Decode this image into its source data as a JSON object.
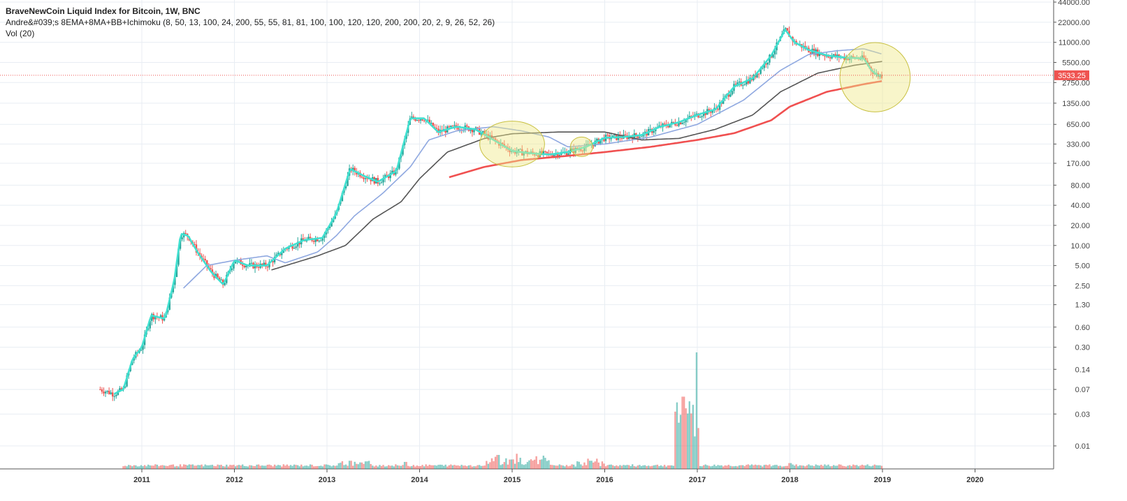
{
  "header": {
    "title": "BraveNewCoin Liquid Index for Bitcoin, 1W, BNC",
    "indicator": "Andre&#039;s 8EMA+8MA+BB+Ichimoku (8, 50, 13, 100, 24, 200, 55, 55, 81, 81, 100, 100, 120, 120, 200, 200, 20, 2, 9, 26, 52, 26)",
    "volume": "Vol (20)"
  },
  "colors": {
    "up": "#26a69a",
    "down": "#ef5350",
    "ema8": "#40e0d0",
    "ma50": "#8fa8e0",
    "ma100": "#555555",
    "ma200": "#f05050",
    "grid": "#e8edf3",
    "highlight": "#f0e88a",
    "price_label": "#ef5350"
  },
  "chart_data": {
    "type": "candlestick",
    "log_scale": true,
    "y_ticks": [
      "44000.00",
      "22000.00",
      "11000.00",
      "5500.00",
      "2750.00",
      "1350.00",
      "650.00",
      "330.00",
      "170.00",
      "80.00",
      "40.00",
      "20.00",
      "10.00",
      "5.00",
      "2.50",
      "1.30",
      "0.60",
      "0.30",
      "0.14",
      "0.07",
      "0.03",
      "0.01"
    ],
    "x_ticks": [
      "2011",
      "2012",
      "2013",
      "2014",
      "2015",
      "2016",
      "2017",
      "2018",
      "2019",
      "2020"
    ],
    "last_price": "3533.25",
    "price_series": [
      {
        "t": 2010.55,
        "v": 0.07
      },
      {
        "t": 2010.7,
        "v": 0.06
      },
      {
        "t": 2010.8,
        "v": 0.07
      },
      {
        "t": 2010.9,
        "v": 0.2
      },
      {
        "t": 2011.0,
        "v": 0.3
      },
      {
        "t": 2011.1,
        "v": 0.9
      },
      {
        "t": 2011.25,
        "v": 0.8
      },
      {
        "t": 2011.35,
        "v": 3
      },
      {
        "t": 2011.42,
        "v": 15
      },
      {
        "t": 2011.5,
        "v": 14
      },
      {
        "t": 2011.6,
        "v": 8
      },
      {
        "t": 2011.75,
        "v": 4
      },
      {
        "t": 2011.88,
        "v": 2.6
      },
      {
        "t": 2012.0,
        "v": 6
      },
      {
        "t": 2012.15,
        "v": 5
      },
      {
        "t": 2012.35,
        "v": 5
      },
      {
        "t": 2012.55,
        "v": 9
      },
      {
        "t": 2012.75,
        "v": 12
      },
      {
        "t": 2012.95,
        "v": 13
      },
      {
        "t": 2013.1,
        "v": 30
      },
      {
        "t": 2013.25,
        "v": 140
      },
      {
        "t": 2013.4,
        "v": 110
      },
      {
        "t": 2013.55,
        "v": 90
      },
      {
        "t": 2013.75,
        "v": 130
      },
      {
        "t": 2013.9,
        "v": 800
      },
      {
        "t": 2014.05,
        "v": 800
      },
      {
        "t": 2014.2,
        "v": 500
      },
      {
        "t": 2014.4,
        "v": 600
      },
      {
        "t": 2014.6,
        "v": 550
      },
      {
        "t": 2014.8,
        "v": 380
      },
      {
        "t": 2015.0,
        "v": 260
      },
      {
        "t": 2015.2,
        "v": 240
      },
      {
        "t": 2015.4,
        "v": 230
      },
      {
        "t": 2015.6,
        "v": 250
      },
      {
        "t": 2015.8,
        "v": 300
      },
      {
        "t": 2016.0,
        "v": 410
      },
      {
        "t": 2016.2,
        "v": 420
      },
      {
        "t": 2016.4,
        "v": 450
      },
      {
        "t": 2016.6,
        "v": 600
      },
      {
        "t": 2016.8,
        "v": 700
      },
      {
        "t": 2017.0,
        "v": 900
      },
      {
        "t": 2017.2,
        "v": 1100
      },
      {
        "t": 2017.4,
        "v": 2400
      },
      {
        "t": 2017.6,
        "v": 3200
      },
      {
        "t": 2017.8,
        "v": 7000
      },
      {
        "t": 2017.95,
        "v": 17000
      },
      {
        "t": 2018.05,
        "v": 11000
      },
      {
        "t": 2018.2,
        "v": 8500
      },
      {
        "t": 2018.4,
        "v": 7000
      },
      {
        "t": 2018.6,
        "v": 6500
      },
      {
        "t": 2018.8,
        "v": 6300
      },
      {
        "t": 2018.88,
        "v": 4200
      },
      {
        "t": 2018.95,
        "v": 3500
      },
      {
        "t": 2019.0,
        "v": 3533
      }
    ],
    "ma50_series": [
      {
        "t": 2011.45,
        "v": 2.3
      },
      {
        "t": 2011.7,
        "v": 5
      },
      {
        "t": 2012.0,
        "v": 6
      },
      {
        "t": 2012.35,
        "v": 7
      },
      {
        "t": 2012.55,
        "v": 5.5
      },
      {
        "t": 2012.9,
        "v": 8
      },
      {
        "t": 2013.1,
        "v": 14
      },
      {
        "t": 2013.3,
        "v": 28
      },
      {
        "t": 2013.6,
        "v": 60
      },
      {
        "t": 2013.9,
        "v": 150
      },
      {
        "t": 2014.1,
        "v": 380
      },
      {
        "t": 2014.4,
        "v": 520
      },
      {
        "t": 2014.8,
        "v": 600
      },
      {
        "t": 2015.1,
        "v": 520
      },
      {
        "t": 2015.4,
        "v": 420
      },
      {
        "t": 2015.6,
        "v": 300
      },
      {
        "t": 2016.0,
        "v": 330
      },
      {
        "t": 2016.5,
        "v": 420
      },
      {
        "t": 2017.0,
        "v": 650
      },
      {
        "t": 2017.5,
        "v": 1500
      },
      {
        "t": 2017.9,
        "v": 4200
      },
      {
        "t": 2018.2,
        "v": 7200
      },
      {
        "t": 2018.5,
        "v": 8200
      },
      {
        "t": 2018.8,
        "v": 8800
      },
      {
        "t": 2019.0,
        "v": 7300
      }
    ],
    "ma100_series": [
      {
        "t": 2012.4,
        "v": 4.3
      },
      {
        "t": 2012.9,
        "v": 7
      },
      {
        "t": 2013.2,
        "v": 10
      },
      {
        "t": 2013.5,
        "v": 25
      },
      {
        "t": 2013.8,
        "v": 45
      },
      {
        "t": 2014.0,
        "v": 100
      },
      {
        "t": 2014.3,
        "v": 250
      },
      {
        "t": 2014.7,
        "v": 400
      },
      {
        "t": 2015.0,
        "v": 470
      },
      {
        "t": 2015.5,
        "v": 500
      },
      {
        "t": 2016.0,
        "v": 500
      },
      {
        "t": 2016.4,
        "v": 380
      },
      {
        "t": 2016.8,
        "v": 400
      },
      {
        "t": 2017.2,
        "v": 550
      },
      {
        "t": 2017.6,
        "v": 900
      },
      {
        "t": 2017.9,
        "v": 2000
      },
      {
        "t": 2018.3,
        "v": 3800
      },
      {
        "t": 2018.7,
        "v": 5000
      },
      {
        "t": 2019.0,
        "v": 5700
      }
    ],
    "ma200_series": [
      {
        "t": 2014.32,
        "v": 105
      },
      {
        "t": 2014.7,
        "v": 150
      },
      {
        "t": 2015.1,
        "v": 190
      },
      {
        "t": 2015.6,
        "v": 220
      },
      {
        "t": 2016.0,
        "v": 250
      },
      {
        "t": 2016.5,
        "v": 300
      },
      {
        "t": 2017.0,
        "v": 380
      },
      {
        "t": 2017.4,
        "v": 480
      },
      {
        "t": 2017.8,
        "v": 750
      },
      {
        "t": 2018.0,
        "v": 1200
      },
      {
        "t": 2018.4,
        "v": 2000
      },
      {
        "t": 2018.8,
        "v": 2600
      },
      {
        "t": 2019.0,
        "v": 2900
      }
    ],
    "volume_peaks": [
      {
        "t": 2016.82,
        "v": 0.45
      },
      {
        "t": 2016.85,
        "v": 0.62
      },
      {
        "t": 2016.88,
        "v": 0.52
      },
      {
        "t": 2016.92,
        "v": 0.58
      },
      {
        "t": 2016.96,
        "v": 0.55
      },
      {
        "t": 2016.99,
        "v": 1.0
      },
      {
        "t": 2014.85,
        "v": 0.12
      },
      {
        "t": 2015.05,
        "v": 0.13
      },
      {
        "t": 2013.25,
        "v": 0.07
      },
      {
        "t": 2013.85,
        "v": 0.06
      },
      {
        "t": 2018.0,
        "v": 0.05
      },
      {
        "t": 2015.85,
        "v": 0.07
      }
    ],
    "highlights": [
      {
        "t": 2015.0,
        "v": 330,
        "rt": 0.35,
        "rv": 2.2
      },
      {
        "t": 2015.75,
        "v": 300,
        "rt": 0.12,
        "rv": 1.4
      },
      {
        "t": 2018.92,
        "v": 3300,
        "rt": 0.38,
        "rv": 3.3
      }
    ]
  }
}
